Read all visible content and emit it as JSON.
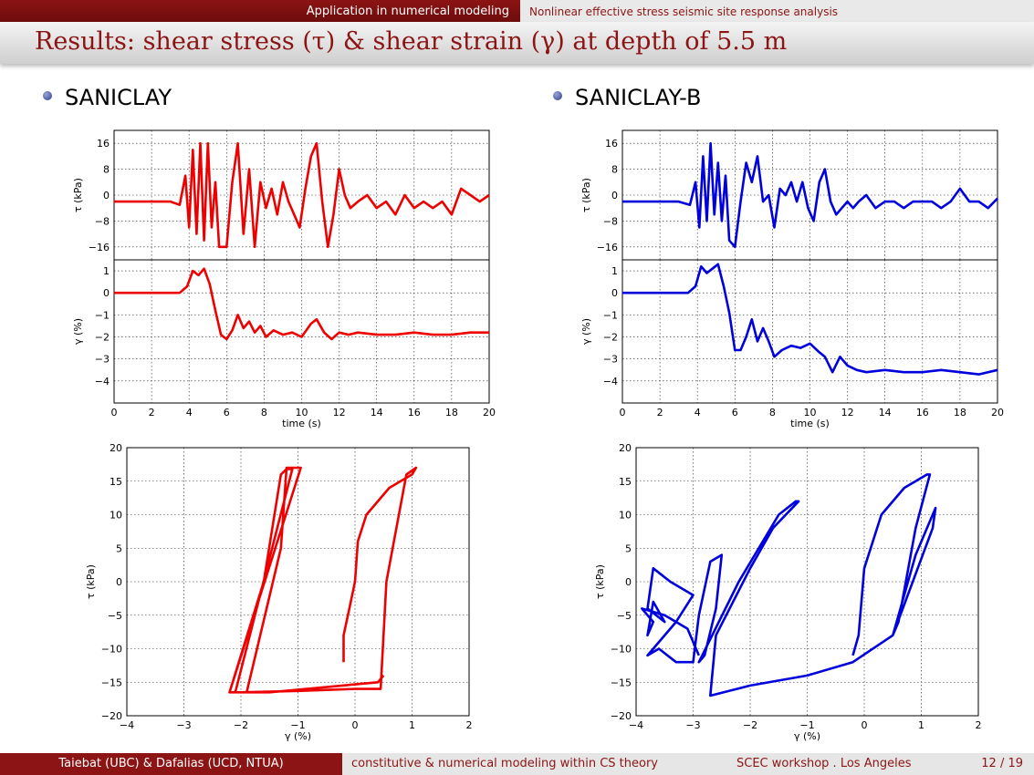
{
  "header": {
    "section": "Application in numerical modeling",
    "subsection": "Nonlinear effective stress seismic site response analysis",
    "title": "Results: shear stress (τ) & shear strain (γ) at depth of 5.5 m"
  },
  "panels": {
    "left_heading": "SANICLAY",
    "right_heading": "SANICLAY-B"
  },
  "footer": {
    "authors": "Taiebat (UBC) & Dafalias (UCD, NTUA)",
    "course": "constitutive & numerical modeling within CS theory",
    "workshop": "SCEC workshop . Los Angeles",
    "page": "12 / 19"
  },
  "colors": {
    "brand": "#8c1414",
    "saniclay": "#ee0000",
    "saniclay_b": "#0000dd"
  },
  "chart_data": [
    {
      "id": "saniclay-tau-time",
      "type": "line",
      "ylabel": "τ (kPa)",
      "xlim": [
        0,
        20
      ],
      "ylim": [
        -20,
        20
      ],
      "yticks": [
        16,
        8,
        0,
        -8,
        -16
      ],
      "yticklabels": [
        "16",
        "8",
        "0",
        "−8",
        "−16"
      ],
      "grid": true,
      "series": [
        {
          "color": "#ee0000",
          "x": [
            0,
            1,
            2,
            3,
            3.5,
            3.8,
            4.0,
            4.2,
            4.4,
            4.6,
            4.8,
            5.0,
            5.2,
            5.4,
            5.6,
            6.0,
            6.3,
            6.6,
            6.9,
            7.2,
            7.5,
            7.8,
            8.1,
            8.4,
            8.7,
            9.0,
            9.3,
            9.6,
            9.9,
            10.2,
            10.5,
            10.8,
            11.1,
            11.4,
            11.7,
            12.0,
            12.3,
            12.6,
            13,
            13.5,
            14,
            14.5,
            15,
            15.5,
            16,
            16.5,
            17,
            17.5,
            18,
            18.5,
            19,
            19.5,
            20
          ],
          "y": [
            -2,
            -2,
            -2,
            -2,
            -3,
            6,
            -10,
            14,
            -12,
            16,
            -14,
            16,
            -10,
            4,
            -16,
            -16,
            4,
            16,
            -12,
            8,
            -16,
            4,
            -4,
            2,
            -6,
            4,
            -2,
            -6,
            -10,
            2,
            12,
            16,
            -2,
            -16,
            -6,
            8,
            0,
            -4,
            -2,
            0,
            -4,
            -2,
            -6,
            0,
            -4,
            -2,
            -4,
            -2,
            -6,
            2,
            0,
            -2,
            0
          ]
        }
      ]
    },
    {
      "id": "saniclay-gamma-time",
      "type": "line",
      "ylabel": "γ (%)",
      "xlabel": "time (s)",
      "xlim": [
        0,
        20
      ],
      "ylim": [
        -5,
        1.5
      ],
      "xticks": [
        0,
        2,
        4,
        6,
        8,
        10,
        12,
        14,
        16,
        18,
        20
      ],
      "yticks": [
        1,
        0,
        -1,
        -2,
        -3,
        -4
      ],
      "yticklabels": [
        "1",
        "0",
        "−1",
        "−2",
        "−3",
        "−4"
      ],
      "grid": true,
      "series": [
        {
          "color": "#ee0000",
          "x": [
            0,
            3.5,
            3.9,
            4.2,
            4.5,
            4.8,
            5.1,
            5.4,
            5.7,
            6.0,
            6.3,
            6.6,
            6.9,
            7.2,
            7.5,
            7.8,
            8.1,
            8.5,
            9,
            9.5,
            10,
            10.5,
            10.8,
            11.2,
            11.6,
            12,
            12.5,
            13,
            14,
            15,
            16,
            17,
            18,
            19,
            20
          ],
          "y": [
            0,
            0,
            0.3,
            1.0,
            0.8,
            1.1,
            0.4,
            -0.8,
            -1.9,
            -2.1,
            -1.7,
            -1.0,
            -1.6,
            -1.3,
            -1.8,
            -1.5,
            -2.0,
            -1.7,
            -1.9,
            -1.8,
            -2.0,
            -1.4,
            -1.2,
            -1.8,
            -2.1,
            -1.8,
            -1.9,
            -1.8,
            -1.9,
            -1.9,
            -1.8,
            -1.9,
            -1.9,
            -1.8,
            -1.8
          ]
        }
      ]
    },
    {
      "id": "saniclay-b-tau-time",
      "type": "line",
      "ylabel": "τ (kPa)",
      "xlim": [
        0,
        20
      ],
      "ylim": [
        -20,
        20
      ],
      "yticks": [
        16,
        8,
        0,
        -8,
        -16
      ],
      "yticklabels": [
        "16",
        "8",
        "0",
        "−8",
        "−16"
      ],
      "grid": true,
      "series": [
        {
          "color": "#0000dd",
          "x": [
            0,
            1,
            2,
            3,
            3.6,
            3.9,
            4.1,
            4.3,
            4.5,
            4.7,
            4.9,
            5.1,
            5.3,
            5.5,
            5.7,
            6.0,
            6.3,
            6.6,
            6.9,
            7.2,
            7.5,
            7.8,
            8.1,
            8.4,
            8.7,
            9.0,
            9.3,
            9.6,
            9.9,
            10.2,
            10.5,
            10.8,
            11.1,
            11.4,
            11.7,
            12.0,
            12.3,
            12.6,
            13,
            13.5,
            14,
            14.5,
            15,
            15.5,
            16,
            16.5,
            17,
            17.5,
            18,
            18.5,
            19,
            19.5,
            20
          ],
          "y": [
            -2,
            -2,
            -2,
            -2,
            -3,
            4,
            -10,
            12,
            -8,
            16,
            -6,
            10,
            -8,
            6,
            -14,
            -16,
            -2,
            10,
            4,
            12,
            -2,
            0,
            -10,
            2,
            0,
            4,
            -2,
            4,
            -4,
            -8,
            4,
            8,
            -2,
            -6,
            -4,
            -2,
            -4,
            -2,
            0,
            -4,
            -2,
            -2,
            -4,
            -2,
            -2,
            -2,
            -4,
            -2,
            2,
            -2,
            -2,
            -4,
            -1
          ]
        }
      ]
    },
    {
      "id": "saniclay-b-gamma-time",
      "type": "line",
      "ylabel": "γ (%)",
      "xlabel": "time (s)",
      "xlim": [
        0,
        20
      ],
      "ylim": [
        -5,
        1.5
      ],
      "xticks": [
        0,
        2,
        4,
        6,
        8,
        10,
        12,
        14,
        16,
        18,
        20
      ],
      "yticks": [
        1,
        0,
        -1,
        -2,
        -3,
        -4
      ],
      "yticklabels": [
        "1",
        "0",
        "−1",
        "−2",
        "−3",
        "−4"
      ],
      "grid": true,
      "series": [
        {
          "color": "#0000dd",
          "x": [
            0,
            3.5,
            3.9,
            4.2,
            4.5,
            4.8,
            5.1,
            5.4,
            5.7,
            6.0,
            6.3,
            6.6,
            6.9,
            7.2,
            7.5,
            7.8,
            8.1,
            8.5,
            9,
            9.5,
            10,
            10.5,
            10.8,
            11.2,
            11.6,
            12,
            12.5,
            13,
            14,
            15,
            16,
            17,
            18,
            19,
            20
          ],
          "y": [
            0,
            0,
            0.3,
            1.2,
            0.9,
            1.1,
            1.3,
            0.3,
            -0.9,
            -2.6,
            -2.6,
            -2.0,
            -1.2,
            -2.2,
            -1.6,
            -2.2,
            -2.9,
            -2.6,
            -2.4,
            -2.5,
            -2.3,
            -2.7,
            -2.9,
            -3.6,
            -2.9,
            -3.3,
            -3.5,
            -3.6,
            -3.5,
            -3.6,
            -3.6,
            -3.5,
            -3.6,
            -3.7,
            -3.5
          ]
        }
      ]
    },
    {
      "id": "saniclay-loop",
      "type": "line",
      "ylabel": "τ (kPa)",
      "xlabel": "γ (%)",
      "xlim": [
        -4,
        2
      ],
      "ylim": [
        -20,
        20
      ],
      "xticks": [
        -4,
        -3,
        -2,
        -1,
        0,
        1,
        2
      ],
      "xticklabels": [
        "−4",
        "−3",
        "−2",
        "−1",
        "0",
        "1",
        "2"
      ],
      "yticks": [
        20,
        15,
        10,
        5,
        0,
        -5,
        -10,
        -15,
        -20
      ],
      "yticklabels": [
        "20",
        "15",
        "10",
        "5",
        "0",
        "−5",
        "−10",
        "−15",
        "−20"
      ],
      "grid": true,
      "series": [
        {
          "color": "#ee0000",
          "x": [
            -0.2,
            -0.2,
            -0.1,
            0,
            0.05,
            0.2,
            0.6,
            1.0,
            1.07,
            0.9,
            0.55,
            0.45,
            0.3,
            0,
            -1,
            -2.0,
            -2.2,
            -1.6,
            -1.3,
            -1.2,
            -1.1,
            -2.1,
            -1.9,
            -1.3,
            -1.2,
            -0.95,
            -2.2,
            -2.2,
            -1.5,
            0.4,
            0.5
          ],
          "y": [
            -12,
            -8,
            -4,
            0,
            6,
            10,
            14,
            16,
            17,
            16,
            0,
            -16,
            -16,
            -16,
            -16.3,
            -16.5,
            -16.5,
            0,
            16,
            16.8,
            16.8,
            -16.5,
            -16.5,
            5,
            17,
            17,
            -16.5,
            -16.5,
            -16.5,
            -15,
            -14
          ]
        }
      ]
    },
    {
      "id": "saniclay-b-loop",
      "type": "line",
      "ylabel": "τ (kPa)",
      "xlabel": "γ (%)",
      "xlim": [
        -4,
        2
      ],
      "ylim": [
        -20,
        20
      ],
      "xticks": [
        -4,
        -3,
        -2,
        -1,
        0,
        1,
        2
      ],
      "xticklabels": [
        "−4",
        "−3",
        "−2",
        "−1",
        "0",
        "1",
        "2"
      ],
      "yticks": [
        20,
        15,
        10,
        5,
        0,
        -5,
        -10,
        -15,
        -20
      ],
      "yticklabels": [
        "20",
        "15",
        "10",
        "5",
        "0",
        "−5",
        "−10",
        "−15",
        "−20"
      ],
      "grid": true,
      "series": [
        {
          "color": "#0000dd",
          "x": [
            -0.2,
            -0.1,
            0,
            0.3,
            0.7,
            1.1,
            1.15,
            0.9,
            0.6,
            0.5,
            0.9,
            1.25,
            1.2,
            0.5,
            -0.2,
            -1.0,
            -2.0,
            -2.7,
            -2.6,
            -2.0,
            -1.6,
            -1.15,
            -1.2,
            -1.5,
            -2.2,
            -2.9,
            -2.8,
            -2.6,
            -2.5,
            -2.7,
            -2.9,
            -3.0,
            -3.3,
            -3.6,
            -3.8,
            -3.3,
            -3.0,
            -3.4,
            -3.7,
            -3.8,
            -3.5,
            -3.7,
            -3.8,
            -3.7,
            -3.9,
            -3.5,
            -3.1,
            -2.9
          ],
          "y": [
            -11,
            -8,
            2,
            10,
            14,
            16,
            16,
            8,
            -6,
            -8,
            4,
            11,
            8,
            -8,
            -12,
            -14,
            -15.5,
            -17,
            -8,
            2,
            8,
            12,
            12,
            10,
            0,
            -12,
            -11,
            -4,
            4,
            3,
            -5,
            -12,
            -12,
            -10,
            -11,
            -6,
            -2,
            0,
            2,
            -4,
            -6,
            -3,
            -8,
            -6,
            -4,
            -5,
            -7,
            -11
          ]
        }
      ]
    }
  ]
}
